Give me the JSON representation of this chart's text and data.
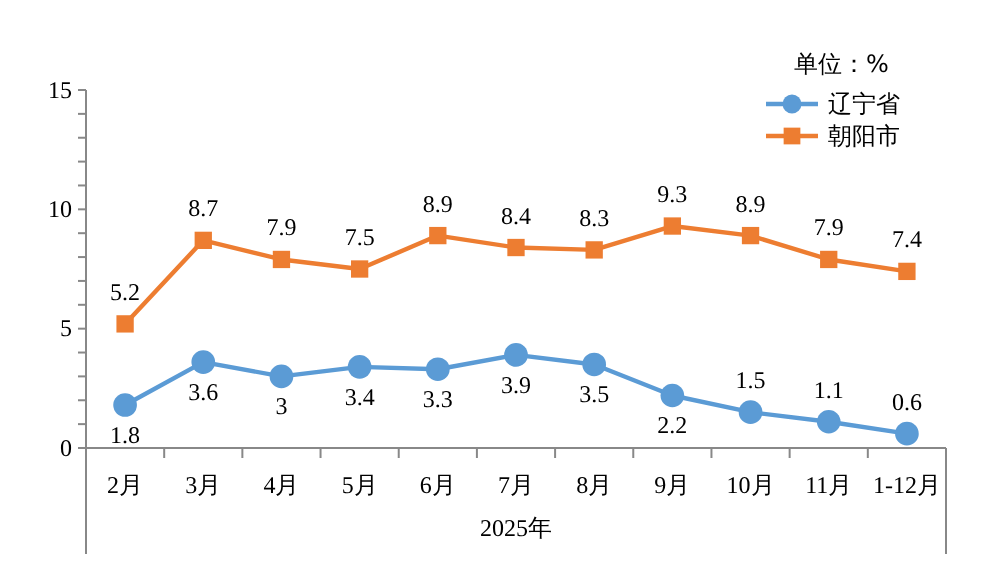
{
  "chart_data": {
    "type": "line",
    "xlabel": "2025年",
    "legend_title": "单位：%",
    "legend": "top right",
    "categories": [
      "2月",
      "3月",
      "4月",
      "5月",
      "6月",
      "7月",
      "8月",
      "9月",
      "10月",
      "11月",
      "1-12月"
    ],
    "series": [
      {
        "name": "辽宁省",
        "color": "#5b9bd5",
        "marker": "circle",
        "values": [
          1.8,
          3.6,
          3,
          3.4,
          3.3,
          3.9,
          3.5,
          2.2,
          1.5,
          1.1,
          0.6
        ]
      },
      {
        "name": "朝阳市",
        "color": "#ed7d31",
        "marker": "square",
        "values": [
          5.2,
          8.7,
          7.9,
          7.5,
          8.9,
          8.4,
          8.3,
          9.3,
          8.9,
          7.9,
          7.4
        ]
      }
    ],
    "ylim": [
      0,
      15
    ],
    "yticks": [
      0,
      {
        "value": 1,
        "label": null
      },
      {
        "value": 2,
        "label": null
      },
      {
        "value": 3,
        "label": null
      },
      {
        "value": 4,
        "label": null
      },
      5,
      {
        "value": 6,
        "label": null
      },
      {
        "value": 7,
        "label": null
      },
      {
        "value": 8,
        "label": null
      },
      {
        "value": 9,
        "label": null
      },
      10,
      {
        "value": 11,
        "label": null
      },
      {
        "value": 12,
        "label": null
      },
      {
        "value": 13,
        "label": null
      },
      {
        "value": 14,
        "label": null
      },
      15
    ],
    "grid": false,
    "data_labels": true,
    "line_style": "solid"
  }
}
